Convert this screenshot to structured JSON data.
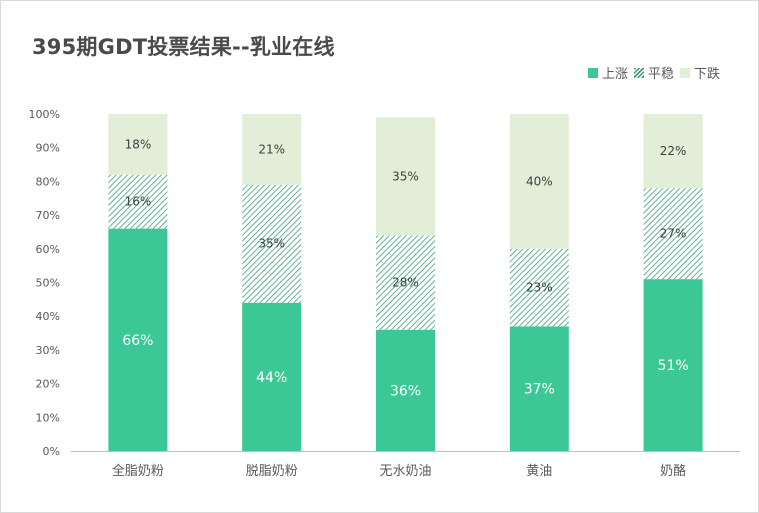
{
  "chart_data": {
    "type": "bar",
    "stacked": true,
    "title": "395期GDT投票结果--乳业在线",
    "categories": [
      "全脂奶粉",
      "脱脂奶粉",
      "无水奶油",
      "黄油",
      "奶酪"
    ],
    "series": [
      {
        "name": "上涨",
        "values": [
          66,
          44,
          36,
          37,
          51
        ],
        "color": "#3cc796",
        "pattern": "solid"
      },
      {
        "name": "平稳",
        "values": [
          16,
          35,
          28,
          23,
          27
        ],
        "color": "#3e9d78",
        "pattern": "hatched"
      },
      {
        "name": "下跌",
        "values": [
          18,
          21,
          35,
          40,
          22
        ],
        "color": "#e2eed8",
        "pattern": "solid"
      }
    ],
    "yticks": [
      "0%",
      "10%",
      "20%",
      "30%",
      "40%",
      "50%",
      "60%",
      "70%",
      "80%",
      "90%",
      "100%"
    ],
    "ylim": [
      0,
      100
    ],
    "legend_position": "top-right",
    "grid": false
  }
}
